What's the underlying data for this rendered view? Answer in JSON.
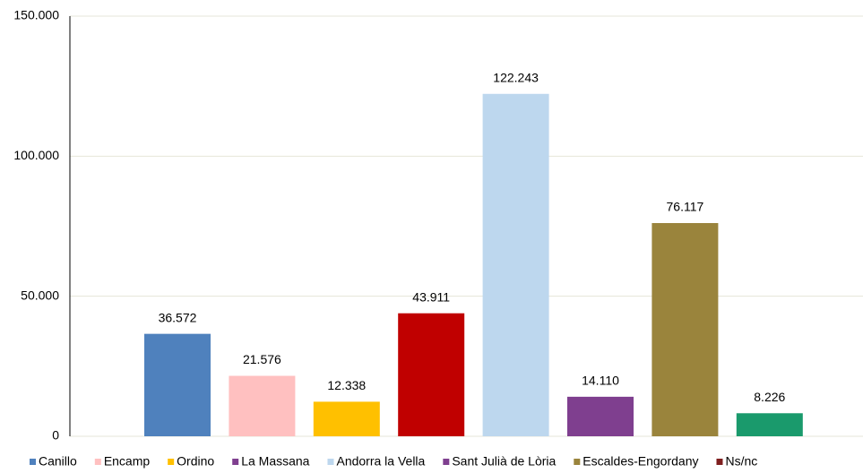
{
  "chart_data": {
    "type": "bar",
    "values": [
      36572,
      21576,
      12338,
      43911,
      122243,
      14110,
      76117,
      8226
    ],
    "value_labels": [
      "36.572",
      "21.576",
      "12.338",
      "43.911",
      "122.243",
      "14.110",
      "76.117",
      "8.226"
    ],
    "colors": [
      "#4f81bd",
      "#ffc0c0",
      "#ffc000",
      "#c00000",
      "#bdd7ee",
      "#7f3f8f",
      "#9a843c",
      "#1a9a6c"
    ],
    "legend": [
      {
        "name": "Canillo",
        "color": "#4f81bd"
      },
      {
        "name": "Encamp",
        "color": "#ffc0c0"
      },
      {
        "name": "Ordino",
        "color": "#ffc000"
      },
      {
        "name": "La Massana",
        "color": "#7f3f8f"
      },
      {
        "name": "Andorra la Vella",
        "color": "#bdd7ee"
      },
      {
        "name": "Sant Julià de Lòria",
        "color": "#7f3f8f"
      },
      {
        "name": "Escaldes-Engordany",
        "color": "#9a843c"
      },
      {
        "name": "Ns/nc",
        "color": "#7f1f1f"
      }
    ],
    "ylim": [
      0,
      150000
    ],
    "yticks": [
      0,
      {
        "value": 50000,
        "label": "50.000"
      },
      {
        "value": 100000,
        "label": "100.000"
      },
      {
        "value": 150000,
        "label": "150.000"
      }
    ],
    "grid": true
  }
}
